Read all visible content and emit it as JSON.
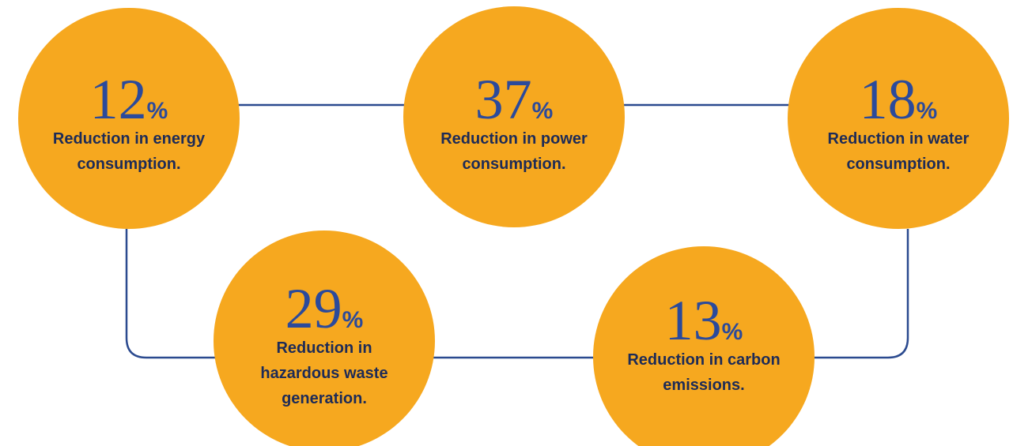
{
  "items": [
    {
      "value": "12",
      "unit": "%",
      "lines": [
        "Reduction in energy",
        "consumption."
      ]
    },
    {
      "value": "37",
      "unit": "%",
      "lines": [
        "Reduction in power",
        "consumption."
      ]
    },
    {
      "value": "18",
      "unit": "%",
      "lines": [
        "Reduction in water",
        "consumption."
      ]
    },
    {
      "value": "29",
      "unit": "%",
      "lines": [
        "Reduction in",
        "hazardous waste",
        "generation."
      ]
    },
    {
      "value": "13",
      "unit": "%",
      "lines": [
        "Reduction in carbon",
        "emissions."
      ]
    }
  ]
}
